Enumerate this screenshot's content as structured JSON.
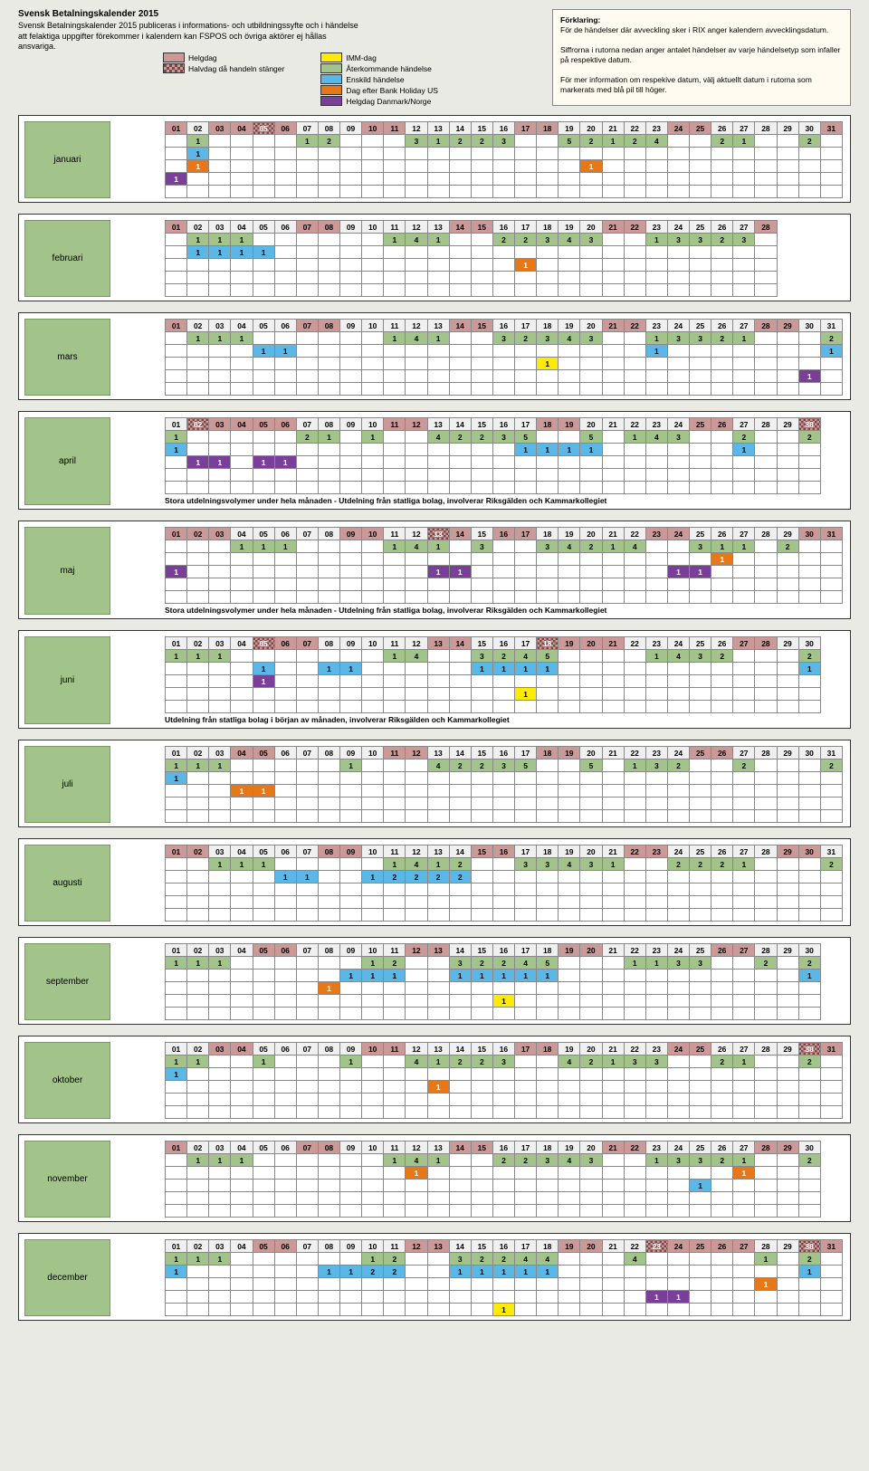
{
  "title": "Svensk Betalningskalender 2015",
  "subtitle": "Svensk Betalningskalender 2015 publiceras i informations- och utbildningssyfte och i händelse att felaktiga uppgifter förekommer i kalendern kan FSPOS och övriga aktörer ej hållas ansvariga.",
  "legend": {
    "helgdag": "Helgdag",
    "halvdag": "Halvdag då handeln stänger",
    "imm": "IMM-dag",
    "ater": "Återkommande händelse",
    "enskild": "Enskild händelse",
    "us": "Dag efter Bank Holiday US",
    "dknor": "Helgdag Danmark/Norge"
  },
  "forklaring": {
    "title": "Förklaring:",
    "p1": "För de händelser där avveckling sker i RIX anger kalendern avvecklingsdatum.",
    "p2": "Siffrorna i rutorna nedan anger antalet händelser av varje händelsetyp som infaller på respektive datum.",
    "p3": "För mer information om respekive datum, välj aktuellt datum i rutorna som markerats med blå pil till höger."
  },
  "colors": {
    "bg": "#e8eae3",
    "helgdag": "#c99",
    "ater": "#a2c48a",
    "enskild": "#5bb8e6",
    "us": "#e67817",
    "dknor": "#7a3f98",
    "imm": "#ffeb00"
  },
  "note_apr": "Stora utdelningsvolymer under hela månaden - Utdelning från statliga bolag, involverar Riksgälden och Kammarkollegiet",
  "note_maj": "Stora utdelningsvolymer under hela månaden - Utdelning från statliga bolag, involverar Riksgälden och Kammarkollegiet",
  "note_jun": "Utdelning från statliga bolag i början av månaden, involverar Riksgälden och Kammarkollegiet",
  "months": {
    "jan": {
      "name": "januari",
      "days": 31,
      "weekends": [
        3,
        4,
        10,
        11,
        17,
        18,
        24,
        25,
        31
      ],
      "hatch": [
        5
      ],
      "holiday": [
        1,
        6
      ],
      "rows": [
        {
          "t": "g",
          "c": {
            "2": "1",
            "7": "1",
            "8": "2",
            "12": "3",
            "13": "1",
            "14": "2",
            "15": "2",
            "16": "3",
            "19": "5",
            "20": "2",
            "21": "1",
            "22": "2",
            "23": "4",
            "26": "2",
            "27": "1",
            "30": "2"
          }
        },
        {
          "t": "b",
          "c": {
            "2": "1"
          }
        },
        {
          "t": "o",
          "c": {
            "2": "1",
            "20": "1"
          }
        },
        {
          "t": "p",
          "c": {
            "1": "1"
          }
        }
      ]
    },
    "feb": {
      "name": "februari",
      "days": 28,
      "weekends": [
        1,
        7,
        8,
        14,
        15,
        21,
        22,
        28
      ],
      "hatch": [],
      "holiday": [],
      "rows": [
        {
          "t": "g",
          "c": {
            "2": "1",
            "3": "1",
            "4": "1",
            "11": "1",
            "12": "4",
            "13": "1",
            "16": "2",
            "17": "2",
            "18": "3",
            "19": "4",
            "20": "3",
            "23": "1",
            "24": "3",
            "25": "3",
            "26": "2",
            "27": "3"
          }
        },
        {
          "t": "b",
          "c": {
            "2": "1",
            "3": "1",
            "4": "1",
            "5": "1"
          }
        },
        {
          "t": "o",
          "c": {
            "17": "1"
          }
        }
      ]
    },
    "mar": {
      "name": "mars",
      "days": 31,
      "weekends": [
        1,
        7,
        8,
        14,
        15,
        21,
        22,
        28,
        29
      ],
      "hatch": [],
      "holiday": [],
      "rows": [
        {
          "t": "g",
          "c": {
            "2": "1",
            "3": "1",
            "4": "1",
            "11": "1",
            "12": "4",
            "13": "1",
            "16": "3",
            "17": "2",
            "18": "3",
            "19": "4",
            "20": "3",
            "23": "1",
            "24": "3",
            "25": "3",
            "26": "2",
            "27": "1",
            "31": "2"
          }
        },
        {
          "t": "b",
          "c": {
            "5": "1",
            "6": "1",
            "23": "1",
            "31": "1"
          }
        },
        {
          "t": "y",
          "c": {
            "18": "1"
          }
        },
        {
          "t": "p",
          "c": {
            "30": "1"
          }
        }
      ]
    },
    "apr": {
      "name": "april",
      "days": 30,
      "weekends": [
        4,
        5,
        11,
        12,
        18,
        19,
        25,
        26
      ],
      "hatch": [
        2,
        30
      ],
      "holiday": [
        3,
        6
      ],
      "rows": [
        {
          "t": "g",
          "c": {
            "1": "1",
            "7": "2",
            "8": "1",
            "10": "1",
            "13": "4",
            "14": "2",
            "15": "2",
            "16": "3",
            "17": "5",
            "20": "5",
            "22": "1",
            "23": "4",
            "24": "3",
            "27": "2",
            "30": "2"
          }
        },
        {
          "t": "b",
          "c": {
            "1": "1",
            "17": "1",
            "18": "1",
            "19": "1",
            "20": "1",
            "27": "1"
          }
        },
        {
          "t": "p",
          "c": {
            "2": "1",
            "3": "1",
            "5": "1",
            "6": "1"
          }
        }
      ]
    },
    "maj": {
      "name": "maj",
      "days": 31,
      "weekends": [
        2,
        3,
        9,
        10,
        16,
        17,
        23,
        24,
        30,
        31
      ],
      "hatch": [
        13
      ],
      "holiday": [
        1,
        14
      ],
      "rows": [
        {
          "t": "g",
          "c": {
            "4": "1",
            "5": "1",
            "6": "1",
            "11": "1",
            "12": "4",
            "13": "1",
            "15": "3",
            "18": "3",
            "19": "4",
            "20": "2",
            "21": "1",
            "22": "4",
            "25": "3",
            "26": "1",
            "27": "1",
            "29": "2"
          }
        },
        {
          "t": "o",
          "c": {
            "26": "1"
          }
        },
        {
          "t": "p",
          "c": {
            "1": "1",
            "13": "1",
            "14": "1",
            "24": "1",
            "25": "1"
          }
        }
      ]
    },
    "jun": {
      "name": "juni",
      "days": 30,
      "weekends": [
        6,
        7,
        13,
        14,
        20,
        21,
        27,
        28
      ],
      "hatch": [
        5,
        18
      ],
      "holiday": [
        19
      ],
      "rows": [
        {
          "t": "g",
          "c": {
            "1": "1",
            "2": "1",
            "3": "1",
            "11": "1",
            "12": "4",
            "15": "3",
            "16": "2",
            "17": "4",
            "18": "5",
            "23": "1",
            "24": "4",
            "25": "3",
            "26": "2",
            "30": "2"
          }
        },
        {
          "t": "b",
          "c": {
            "5": "1",
            "8": "1",
            "9": "1",
            "15": "1",
            "16": "1",
            "17": "1",
            "18": "1",
            "30": "1"
          }
        },
        {
          "t": "p",
          "c": {
            "5": "1"
          }
        },
        {
          "t": "y",
          "c": {
            "17": "1"
          }
        }
      ]
    },
    "jul": {
      "name": "juli",
      "days": 31,
      "weekends": [
        4,
        5,
        11,
        12,
        18,
        19,
        25,
        26
      ],
      "hatch": [],
      "holiday": [],
      "rows": [
        {
          "t": "g",
          "c": {
            "1": "1",
            "2": "1",
            "3": "1",
            "9": "1",
            "13": "4",
            "14": "2",
            "15": "2",
            "16": "3",
            "17": "5",
            "20": "5",
            "22": "1",
            "23": "3",
            "24": "2",
            "27": "2",
            "31": "2"
          }
        },
        {
          "t": "b",
          "c": {
            "1": "1"
          }
        },
        {
          "t": "o",
          "c": {
            "4": "1",
            "5": "1"
          }
        }
      ]
    },
    "aug": {
      "name": "augusti",
      "days": 31,
      "weekends": [
        1,
        2,
        8,
        9,
        15,
        16,
        22,
        23,
        29,
        30
      ],
      "hatch": [],
      "holiday": [],
      "rows": [
        {
          "t": "g",
          "c": {
            "3": "1",
            "4": "1",
            "5": "1",
            "11": "1",
            "12": "4",
            "13": "1",
            "14": "2",
            "17": "3",
            "18": "3",
            "19": "4",
            "20": "3",
            "21": "1",
            "24": "2",
            "25": "2",
            "26": "2",
            "27": "1",
            "31": "2"
          }
        },
        {
          "t": "b",
          "c": {
            "6": "1",
            "7": "1",
            "10": "1",
            "11": "2",
            "12": "2",
            "13": "2",
            "14": "2"
          }
        }
      ]
    },
    "sep": {
      "name": "september",
      "days": 30,
      "weekends": [
        5,
        6,
        12,
        13,
        19,
        20,
        26,
        27
      ],
      "hatch": [],
      "holiday": [],
      "rows": [
        {
          "t": "g",
          "c": {
            "1": "1",
            "2": "1",
            "3": "1",
            "10": "1",
            "11": "2",
            "14": "3",
            "15": "2",
            "16": "2",
            "17": "4",
            "18": "5",
            "22": "1",
            "23": "1",
            "24": "3",
            "25": "3",
            "28": "2",
            "30": "2"
          }
        },
        {
          "t": "b",
          "c": {
            "9": "1",
            "10": "1",
            "11": "1",
            "14": "1",
            "15": "1",
            "16": "1",
            "17": "1",
            "18": "1",
            "30": "1"
          }
        },
        {
          "t": "o",
          "c": {
            "8": "1"
          }
        },
        {
          "t": "y",
          "c": {
            "16": "1"
          }
        }
      ]
    },
    "okt": {
      "name": "oktober",
      "days": 31,
      "weekends": [
        3,
        4,
        10,
        11,
        17,
        18,
        24,
        25,
        31
      ],
      "hatch": [
        30
      ],
      "holiday": [],
      "rows": [
        {
          "t": "g",
          "c": {
            "1": "1",
            "2": "1",
            "5": "1",
            "9": "1",
            "12": "4",
            "13": "1",
            "14": "2",
            "15": "2",
            "16": "3",
            "19": "4",
            "20": "2",
            "21": "1",
            "22": "3",
            "23": "3",
            "26": "2",
            "27": "1",
            "30": "2"
          }
        },
        {
          "t": "b",
          "c": {
            "1": "1"
          }
        },
        {
          "t": "o",
          "c": {
            "13": "1"
          }
        }
      ]
    },
    "nov": {
      "name": "november",
      "days": 30,
      "weekends": [
        1,
        7,
        8,
        14,
        15,
        21,
        22,
        28,
        29
      ],
      "hatch": [],
      "holiday": [],
      "rows": [
        {
          "t": "g",
          "c": {
            "2": "1",
            "3": "1",
            "4": "1",
            "11": "1",
            "12": "4",
            "13": "1",
            "16": "2",
            "17": "2",
            "18": "3",
            "19": "4",
            "20": "3",
            "23": "1",
            "24": "3",
            "25": "3",
            "26": "2",
            "27": "1",
            "30": "2"
          }
        },
        {
          "t": "o",
          "c": {
            "12": "1",
            "27": "1"
          }
        },
        {
          "t": "b",
          "c": {
            "25": "1"
          }
        }
      ]
    },
    "dec": {
      "name": "december",
      "days": 31,
      "weekends": [
        5,
        6,
        12,
        13,
        19,
        20,
        26,
        27
      ],
      "hatch": [
        23,
        30
      ],
      "holiday": [
        24,
        25,
        31
      ],
      "rows": [
        {
          "t": "g",
          "c": {
            "1": "1",
            "2": "1",
            "3": "1",
            "10": "1",
            "11": "2",
            "14": "3",
            "15": "2",
            "16": "2",
            "17": "4",
            "18": "4",
            "22": "4",
            "28": "1",
            "30": "2"
          }
        },
        {
          "t": "b",
          "c": {
            "1": "1",
            "8": "1",
            "9": "1",
            "10": "2",
            "11": "2",
            "14": "1",
            "15": "1",
            "16": "1",
            "17": "1",
            "18": "1",
            "30": "1"
          }
        },
        {
          "t": "o",
          "c": {
            "28": "1"
          }
        },
        {
          "t": "p",
          "c": {
            "23": "1",
            "24": "1"
          }
        },
        {
          "t": "y",
          "c": {
            "16": "1"
          }
        }
      ]
    }
  },
  "month_order": [
    "jan",
    "feb",
    "mar",
    "apr",
    "maj",
    "jun",
    "jul",
    "aug",
    "sep",
    "okt",
    "nov",
    "dec"
  ]
}
